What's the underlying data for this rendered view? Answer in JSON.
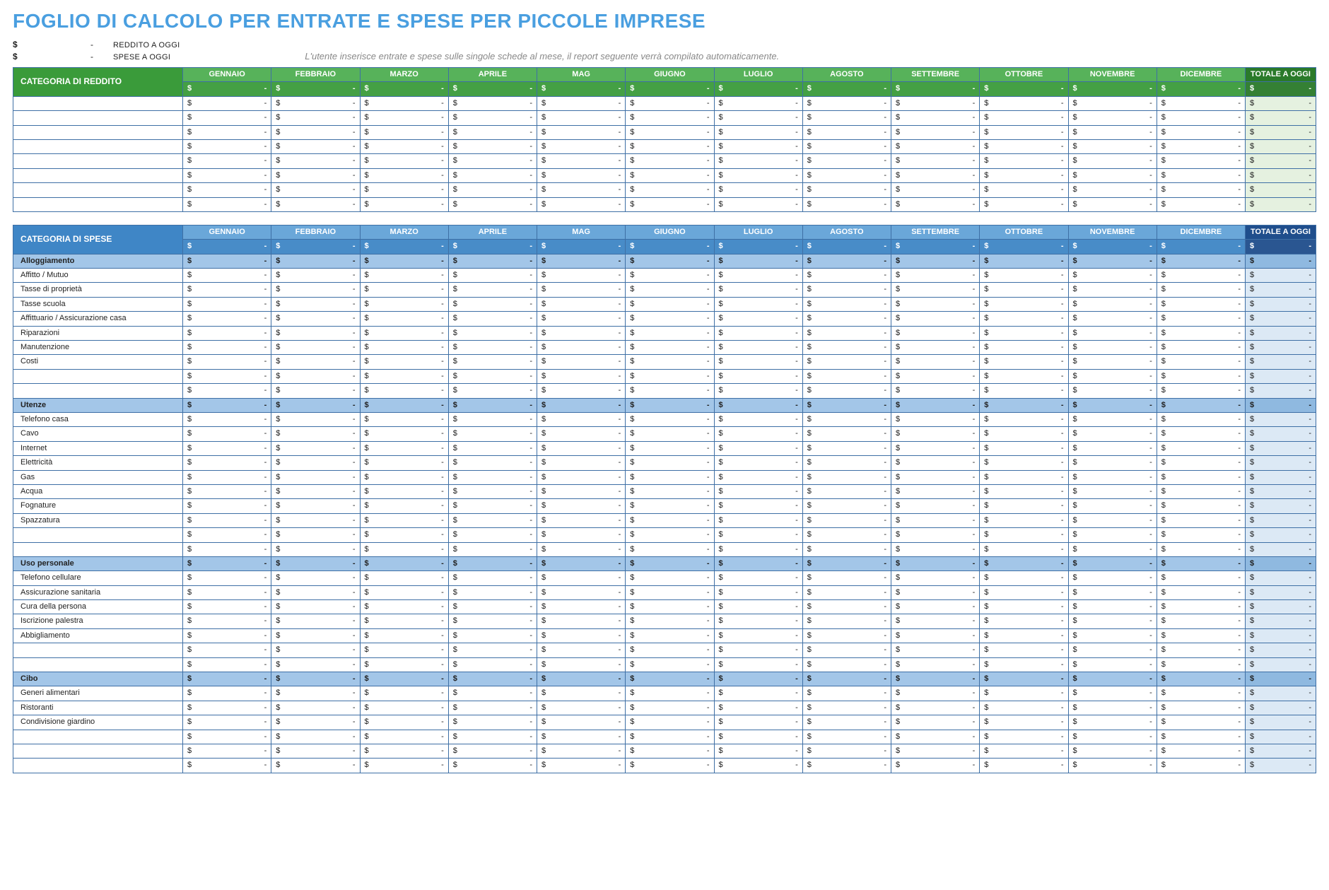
{
  "title": "FOGLIO DI CALCOLO PER ENTRATE E SPESE PER PICCOLE IMPRESE",
  "summary": {
    "currency": "$",
    "dash": "-",
    "income_label": "REDDITO A OGGI",
    "expense_label": "SPESE A OGGI",
    "note": "L'utente inserisce entrate e spese sulle singole schede al mese, il report seguente verrà compilato automaticamente."
  },
  "months": [
    "GENNAIO",
    "FEBBRAIO",
    "MARZO",
    "APRILE",
    "MAG",
    "GIUGNO",
    "LUGLIO",
    "AGOSTO",
    "SETTEMBRE",
    "OTTOBRE",
    "NOVEMBRE",
    "DICEMBRE"
  ],
  "total_label": "TOTALE A OGGI",
  "cell": {
    "sym": "$",
    "val": "-"
  },
  "income": {
    "header": "CATEGORIA DI REDDITO",
    "rows": [
      "",
      "",
      "",
      "",
      "",
      "",
      "",
      ""
    ]
  },
  "expense": {
    "header": "CATEGORIA DI SPESE",
    "groups": [
      {
        "title": "Alloggiamento",
        "rows": [
          "Affitto / Mutuo",
          "Tasse di proprietà",
          "Tasse scuola",
          "Affittuario / Assicurazione casa",
          "Riparazioni",
          "Manutenzione",
          "Costi",
          "",
          ""
        ]
      },
      {
        "title": "Utenze",
        "rows": [
          "Telefono casa",
          "Cavo",
          "Internet",
          "Elettricità",
          "Gas",
          "Acqua",
          "Fognature",
          "Spazzatura",
          "",
          ""
        ]
      },
      {
        "title": "Uso personale",
        "rows": [
          "Telefono cellulare",
          "Assicurazione sanitaria",
          "Cura della persona",
          "Iscrizione palestra",
          "Abbigliamento",
          "",
          ""
        ]
      },
      {
        "title": "Cibo",
        "rows": [
          "Generi alimentari",
          "Ristoranti",
          "Condivisione giardino",
          "",
          "",
          ""
        ]
      }
    ]
  },
  "colors": {
    "title_text": "#4a9fe0",
    "border": "#3e6fa5",
    "income_header_main": "#3a9b3a",
    "income_header_month": "#57b25a",
    "income_header_total": "#2a7a2a",
    "income_total_cell": "#e5f1e0",
    "expense_header_main": "#3f86c6",
    "expense_header_month": "#6aa7d9",
    "expense_header_total": "#1f4e8c",
    "expense_total_cell": "#dce9f5",
    "expense_section_row": "#a3c6e8",
    "expense_section_total": "#8fb9e0",
    "note_text": "#888888"
  }
}
